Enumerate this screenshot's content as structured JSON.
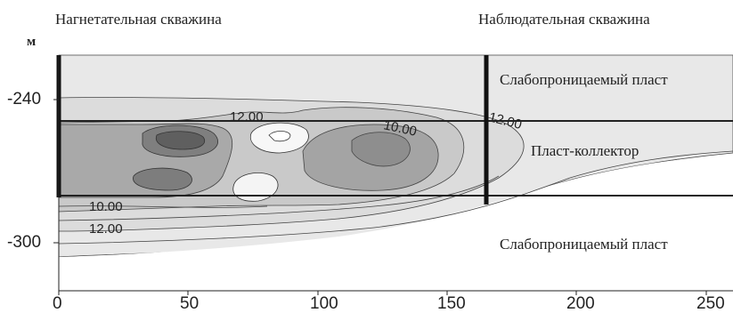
{
  "header": {
    "left_title": "Нагнетательная скважина",
    "right_title": "Наблюдательная скважина",
    "y_unit": "м"
  },
  "axes": {
    "y_ticks": [
      "-240",
      "-300"
    ],
    "x_ticks": [
      "0",
      "50",
      "100",
      "150",
      "200",
      "250"
    ]
  },
  "layers": {
    "upper": "Слабопроницаемый пласт",
    "reservoir": "Пласт-коллектор",
    "lower": "Слабопроницаемый пласт"
  },
  "contour_labels": [
    "12.00",
    "10.00",
    "12.00",
    "10.00",
    "12.00"
  ],
  "colors": {
    "fill_light": "#e6e6e6",
    "fill_mid": "#cfcfcf",
    "fill_dark": "#8e8e8e",
    "fill_darkest": "#6a6a6a",
    "line": "#222222"
  }
}
